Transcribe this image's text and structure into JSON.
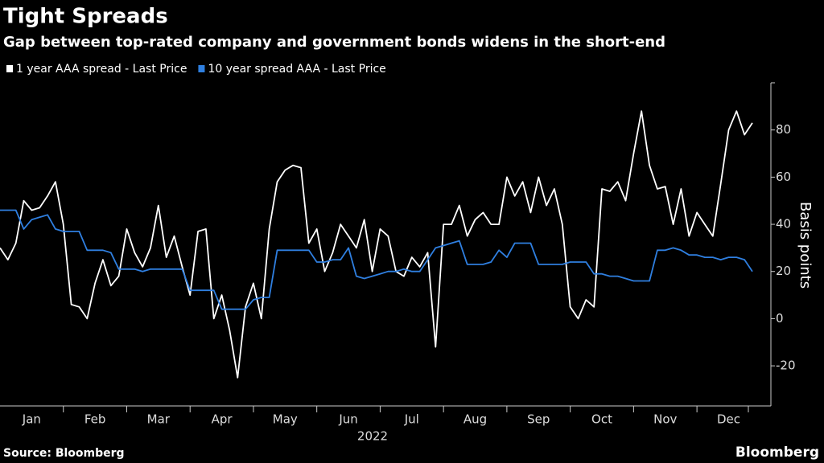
{
  "chart_data": {
    "type": "line",
    "title": "Tight Spreads",
    "subtitle": "Gap between top-rated company and government bonds widens in the short-end",
    "y_label": "Basis points",
    "year_label": "2022",
    "source": "Source: Bloomberg",
    "logo": "Bloomberg",
    "ylim": [
      -37,
      100
    ],
    "yticks": [
      -20,
      0,
      20,
      40,
      60,
      80
    ],
    "categories": [
      "Jan",
      null,
      null,
      null,
      null,
      null,
      null,
      null,
      "Feb",
      null,
      null,
      null,
      null,
      null,
      null,
      null,
      "Mar",
      null,
      null,
      null,
      null,
      null,
      null,
      null,
      "Apr",
      null,
      null,
      null,
      null,
      null,
      null,
      null,
      "May",
      null,
      null,
      null,
      null,
      null,
      null,
      null,
      "Jun",
      null,
      null,
      null,
      null,
      null,
      null,
      null,
      "Jul",
      null,
      null,
      null,
      null,
      null,
      null,
      null,
      "Aug",
      null,
      null,
      null,
      null,
      null,
      null,
      null,
      "Sep",
      null,
      null,
      null,
      null,
      null,
      null,
      null,
      "Oct",
      null,
      null,
      null,
      null,
      null,
      null,
      null,
      "Nov",
      null,
      null,
      null,
      null,
      null,
      null,
      null,
      "Dec",
      null,
      null,
      null,
      null,
      null,
      null,
      null
    ],
    "series": [
      {
        "name": "1 year AAA spread - Last Price",
        "color": "#ffffff",
        "values": [
          30,
          25,
          32,
          50,
          46,
          47,
          52,
          58,
          40,
          6,
          5,
          0,
          15,
          25,
          14,
          18,
          38,
          28,
          22,
          30,
          48,
          26,
          35,
          22,
          10,
          37,
          38,
          0,
          10,
          -5,
          -25,
          5,
          15,
          0,
          38,
          58,
          63,
          65,
          64,
          32,
          38,
          20,
          28,
          40,
          35,
          30,
          42,
          20,
          38,
          35,
          20,
          18,
          26,
          22,
          28,
          -12,
          40,
          40,
          48,
          35,
          42,
          45,
          40,
          40,
          60,
          52,
          58,
          45,
          60,
          48,
          55,
          40,
          5,
          0,
          8,
          5,
          55,
          54,
          58,
          50,
          70,
          88,
          65,
          55,
          56,
          40,
          55,
          35,
          45,
          40,
          35,
          57,
          80,
          88,
          78,
          83
        ]
      },
      {
        "name": "10 year spread AAA - Last Price",
        "color": "#2f7fe0",
        "values": [
          46,
          46,
          46,
          38,
          42,
          43,
          44,
          38,
          37,
          37,
          37,
          29,
          29,
          29,
          28,
          21,
          21,
          21,
          20,
          21,
          21,
          21,
          21,
          21,
          12,
          12,
          12,
          12,
          4,
          4,
          4,
          4,
          8,
          9,
          9,
          29,
          29,
          29,
          29,
          29,
          24,
          24,
          25,
          25,
          30,
          18,
          17,
          18,
          19,
          20,
          20,
          21,
          20,
          20,
          25,
          30,
          31,
          32,
          33,
          23,
          23,
          23,
          24,
          29,
          26,
          32,
          32,
          32,
          23,
          23,
          23,
          23,
          24,
          24,
          24,
          19,
          19,
          18,
          18,
          17,
          16,
          16,
          16,
          29,
          29,
          30,
          29,
          27,
          27,
          26,
          26,
          25,
          26,
          26,
          25,
          20
        ]
      }
    ]
  }
}
